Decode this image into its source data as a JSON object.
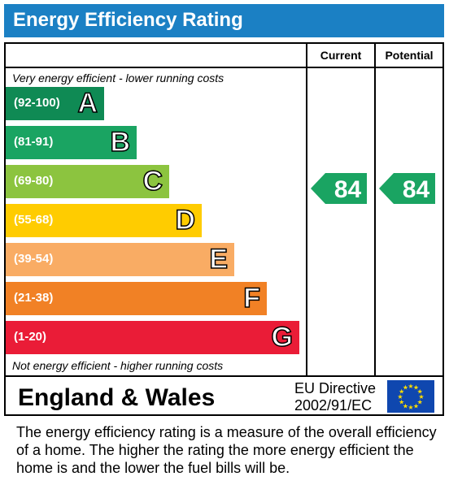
{
  "title": "Energy Efficiency Rating",
  "columns": {
    "current": "Current",
    "potential": "Potential"
  },
  "top_note": "Very energy efficient - lower running costs",
  "bottom_note": "Not energy efficient - higher running costs",
  "country": "England & Wales",
  "directive": [
    "EU Directive",
    "2002/91/EC"
  ],
  "description": "The energy efficiency rating is a measure of the overall efficiency of a home.  The higher the rating the more energy efficient the home is and the lower the fuel bills will be.",
  "colors": {
    "title_bar": "#1b80c4",
    "arrow": "#1aa462",
    "flag": "#0f47af",
    "star": "#ffdd00"
  },
  "chart_data": {
    "type": "bar",
    "categories": [
      "A",
      "B",
      "C",
      "D",
      "E",
      "F",
      "G"
    ],
    "ranges": [
      "(92-100)",
      "(81-91)",
      "(69-80)",
      "(55-68)",
      "(39-54)",
      "(21-38)",
      "(1-20)"
    ],
    "band_colors": [
      "#0f8a54",
      "#1aa462",
      "#8cc43f",
      "#ffcc00",
      "#f9ac64",
      "#f18125",
      "#ea1c37"
    ],
    "current": 84,
    "potential": 84
  }
}
